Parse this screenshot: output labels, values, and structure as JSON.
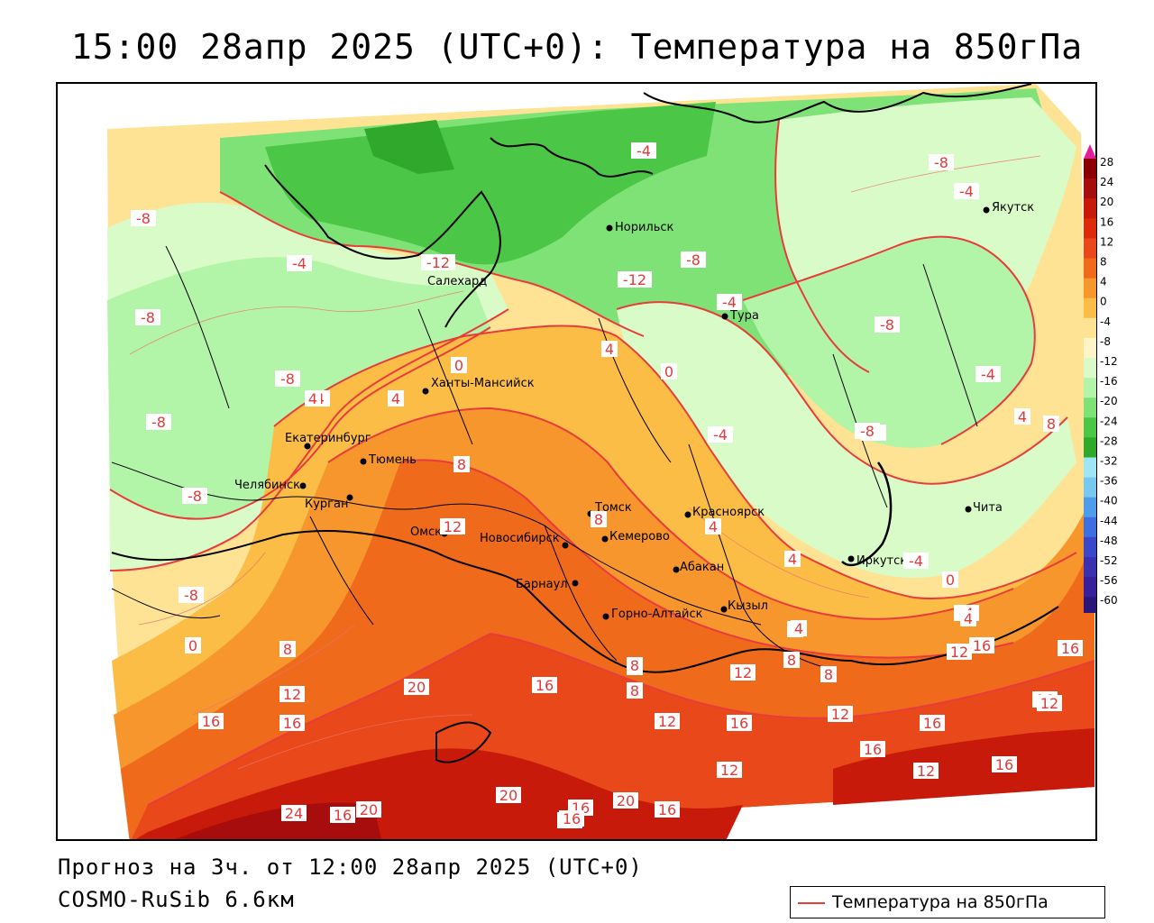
{
  "title": "15:00 28апр 2025 (UTC+0): Температура на 850гПа",
  "footer": {
    "forecast": "Прогноз на 3ч. от 12:00 28апр 2025 (UTC+0)",
    "model": "COSMO-RuSib 6.6км"
  },
  "legend": {
    "label": "Температура на 850гПа",
    "line_color": "#e83c3c"
  },
  "colorbar": {
    "ticks": [
      "28",
      "24",
      "20",
      "16",
      "12",
      "8",
      "4",
      "0",
      "-4",
      "-8",
      "-12",
      "-16",
      "-20",
      "-24",
      "-28",
      "-32",
      "-36",
      "-40",
      "-44",
      "-48",
      "-52",
      "-56",
      "-60"
    ],
    "colors": [
      "#8b0000",
      "#a80d0d",
      "#c81a0a",
      "#dd2a08",
      "#e8481a",
      "#f06a1c",
      "#f7962c",
      "#fbbd45",
      "#fde393",
      "#fdf5c8",
      "#d9fbc8",
      "#b3f5a8",
      "#7ee276",
      "#4cc646",
      "#2fa82c",
      "#9fe6f5",
      "#78c8f0",
      "#509cec",
      "#3c6fe0",
      "#3848c8",
      "#3a30b0",
      "#38209a",
      "#2a1678"
    ],
    "top_arrow_color": "#e0209a"
  },
  "cities": [
    {
      "name": "Салехард"
    },
    {
      "name": "Норильск"
    },
    {
      "name": "Якутск"
    },
    {
      "name": "Тура"
    },
    {
      "name": "Ханты-Мансийск"
    },
    {
      "name": "Екатеринбург"
    },
    {
      "name": "Тюмень"
    },
    {
      "name": "Челябинск"
    },
    {
      "name": "Курган"
    },
    {
      "name": "Омск"
    },
    {
      "name": "Новосибирск"
    },
    {
      "name": "Томск"
    },
    {
      "name": "Кемерово"
    },
    {
      "name": "Барнаул"
    },
    {
      "name": "Горно-Алтайск"
    },
    {
      "name": "Абакан"
    },
    {
      "name": "Кызыл"
    },
    {
      "name": "Красноярск"
    },
    {
      "name": "Иркутск"
    },
    {
      "name": "Чита"
    }
  ],
  "isotherm_labels": [
    "-12",
    "-8",
    "-4",
    "-8",
    "-4",
    "-4",
    "-8",
    "-12",
    "-8",
    "-4",
    "-8",
    "-8",
    "-8",
    "-4",
    "-8",
    "-4",
    "-8",
    "-4",
    "0",
    "4",
    "4",
    "4",
    "0",
    "-4",
    "-8",
    "-4",
    "4",
    "8",
    "8",
    "12",
    "8",
    "4",
    "4",
    "0",
    "-4",
    "0",
    "8",
    "4",
    "8",
    "12",
    "16",
    "8",
    "8",
    "12",
    "12",
    "16",
    "20",
    "16",
    "8",
    "12",
    "12",
    "16",
    "16",
    "16",
    "16",
    "12",
    "12",
    "16",
    "16",
    "12",
    "16",
    "20",
    "24",
    "16",
    "20",
    "20",
    "16",
    "16",
    "20",
    "16",
    "8",
    "4",
    "4"
  ]
}
